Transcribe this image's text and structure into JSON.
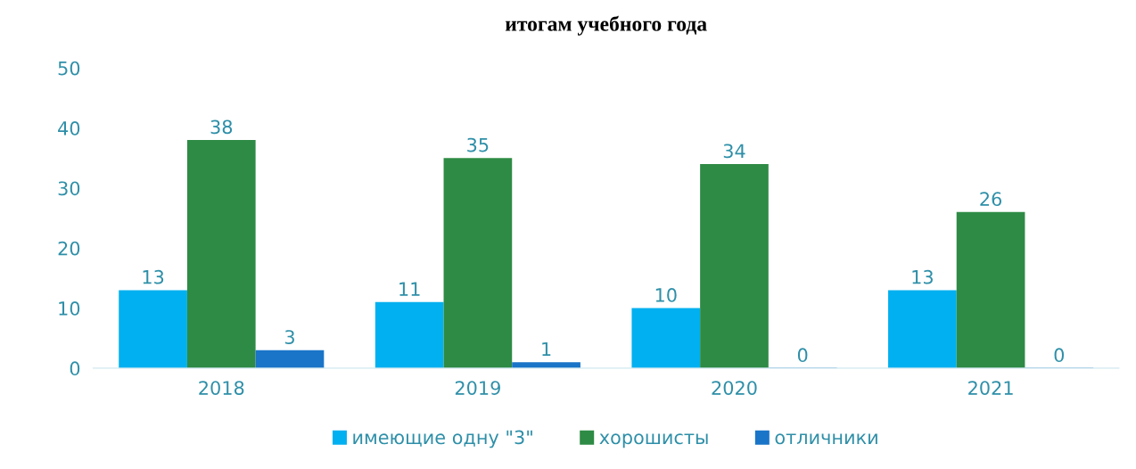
{
  "chart_data": {
    "type": "bar",
    "title": "итогам учебного года",
    "categories": [
      "2018",
      "2019",
      "2020",
      "2021"
    ],
    "series": [
      {
        "name": "имеющие одну \"3\"",
        "color": "#00b0f0",
        "values": [
          13,
          11,
          10,
          13
        ]
      },
      {
        "name": "хорошисты",
        "color": "#2e8b45",
        "values": [
          38,
          35,
          34,
          26
        ]
      },
      {
        "name": "отличники",
        "color": "#1a75c8",
        "values": [
          3,
          1,
          0,
          0
        ]
      }
    ],
    "ylim": [
      0,
      50
    ],
    "yticks": [
      0,
      10,
      20,
      30,
      40,
      50
    ],
    "data_labels": true,
    "grid": false,
    "legend": "bottom"
  }
}
